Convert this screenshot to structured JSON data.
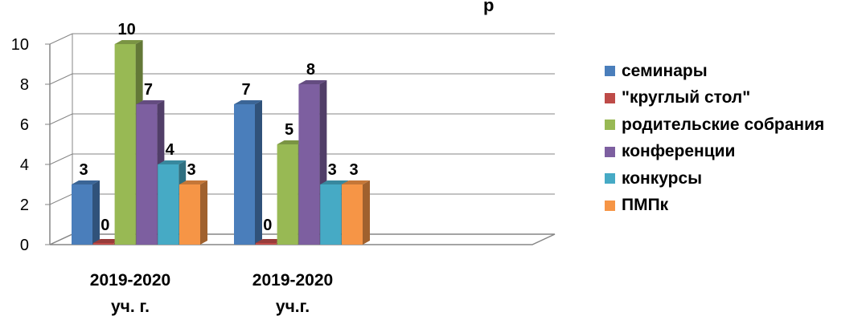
{
  "chart_data": {
    "type": "bar",
    "title": "",
    "title_fragment": "р",
    "xlabel": "",
    "ylabel": "",
    "ylim": [
      0,
      10
    ],
    "y_ticks": [
      "0",
      "2",
      "4",
      "6",
      "8",
      "10"
    ],
    "categories": [
      [
        "2019-2020",
        "уч. г."
      ],
      [
        "2019-2020",
        "уч.г."
      ]
    ],
    "series": [
      {
        "name": "семинары",
        "values": [
          3,
          7
        ],
        "color": "#4a7ebb",
        "labels": [
          "3",
          "7"
        ]
      },
      {
        "name": "\"круглый стол\"",
        "values": [
          0,
          0
        ],
        "color": "#be4b48",
        "labels": [
          "0",
          "0"
        ]
      },
      {
        "name": "родительские собрания",
        "values": [
          10,
          5
        ],
        "color": "#98b954",
        "labels": [
          "10",
          "5"
        ]
      },
      {
        "name": "конференции",
        "values": [
          7,
          8
        ],
        "color": "#7d5fa0",
        "labels": [
          "7",
          "8"
        ]
      },
      {
        "name": "конкурсы",
        "values": [
          4,
          3
        ],
        "color": "#46aac5",
        "labels": [
          "4",
          "3"
        ]
      },
      {
        "name": "ПМПк",
        "values": [
          3,
          3
        ],
        "color": "#f69546",
        "labels": [
          "3",
          "3"
        ]
      }
    ],
    "grid": true,
    "three_d": true,
    "legend_position": "right"
  }
}
